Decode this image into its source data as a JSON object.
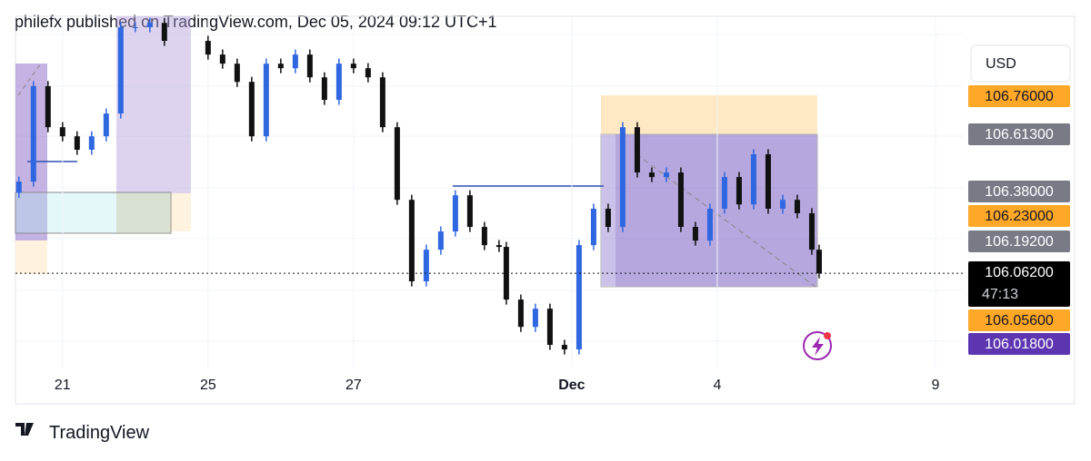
{
  "header": {
    "title": "philefx published on TradingView.com, Dec 05, 2024 09:12 UTC+1"
  },
  "footer": {
    "brand": "TradingView"
  },
  "currency": "USD",
  "countdown": "47:13",
  "chart_data": {
    "type": "candlestick",
    "x": [
      -0.6,
      -0.4,
      -0.2,
      0,
      0.2,
      0.4,
      0.6,
      0.8,
      1,
      1.2,
      1.4,
      2,
      2.2,
      2.4,
      2.6,
      2.8,
      3,
      3.2,
      3.4,
      3.6,
      3.8,
      4,
      4.2,
      4.4,
      4.6,
      4.8,
      5,
      5.2,
      5.4,
      5.6,
      5.8,
      6,
      6.1,
      6.3,
      6.5,
      6.7,
      6.9,
      7.1,
      7.3,
      7.5,
      7.7,
      7.9,
      8.1,
      8.3,
      8.5,
      8.7,
      8.9,
      9.1,
      9.3,
      9.5,
      9.7,
      9.9,
      10.1,
      10.3,
      10.4
    ],
    "open": [
      106.38,
      106.424,
      106.801,
      106.639,
      106.603,
      106.55,
      106.603,
      106.693,
      107.034,
      107.034,
      107.051,
      106.98,
      106.926,
      106.89,
      106.818,
      106.603,
      106.89,
      106.872,
      106.926,
      106.836,
      106.747,
      106.89,
      106.872,
      106.836,
      106.639,
      106.352,
      106.03,
      106.155,
      106.227,
      106.37,
      106.245,
      106.173,
      106.166,
      105.958,
      105.85,
      105.922,
      105.779,
      105.761,
      106.173,
      106.317,
      106.245,
      106.639,
      106.46,
      106.442,
      106.46,
      106.245,
      106.191,
      106.317,
      106.442,
      106.334,
      106.532,
      106.317,
      106.352,
      106.299,
      106.155
    ],
    "high": [
      106.444,
      106.821,
      106.821,
      106.659,
      106.623,
      106.623,
      106.713,
      107.054,
      107.054,
      107.071,
      107.071,
      107.0,
      106.946,
      106.91,
      106.838,
      106.91,
      106.91,
      106.946,
      106.946,
      106.856,
      106.91,
      106.91,
      106.892,
      106.856,
      106.659,
      106.372,
      106.175,
      106.247,
      106.39,
      106.39,
      106.265,
      106.193,
      106.186,
      105.978,
      105.942,
      105.942,
      105.799,
      106.193,
      106.337,
      106.337,
      106.659,
      106.659,
      106.48,
      106.48,
      106.48,
      106.265,
      106.337,
      106.462,
      106.462,
      106.552,
      106.552,
      106.372,
      106.372,
      106.319,
      106.175
    ],
    "low": [
      106.36,
      106.404,
      106.619,
      106.583,
      106.53,
      106.53,
      106.583,
      106.673,
      107.014,
      107.014,
      106.96,
      106.906,
      106.87,
      106.798,
      106.583,
      106.583,
      106.852,
      106.852,
      106.816,
      106.727,
      106.727,
      106.852,
      106.816,
      106.619,
      106.332,
      106.01,
      106.01,
      106.135,
      106.207,
      106.225,
      106.153,
      106.146,
      105.938,
      105.83,
      105.83,
      105.759,
      105.741,
      105.741,
      106.153,
      106.225,
      106.225,
      106.44,
      106.422,
      106.422,
      106.225,
      106.171,
      106.171,
      106.297,
      106.314,
      106.314,
      106.297,
      106.297,
      106.279,
      106.135,
      106.042
    ],
    "close": [
      106.424,
      106.801,
      106.639,
      106.603,
      106.55,
      106.603,
      106.693,
      107.034,
      107.034,
      107.051,
      106.98,
      106.926,
      106.89,
      106.818,
      106.603,
      106.89,
      106.872,
      106.926,
      106.836,
      106.747,
      106.89,
      106.872,
      106.836,
      106.639,
      106.352,
      106.03,
      106.155,
      106.227,
      106.37,
      106.245,
      106.173,
      106.166,
      105.958,
      105.85,
      105.922,
      105.779,
      105.761,
      106.173,
      106.317,
      106.245,
      106.639,
      106.46,
      106.442,
      106.46,
      106.245,
      106.191,
      106.317,
      106.442,
      106.334,
      106.532,
      106.317,
      106.352,
      106.299,
      106.155,
      106.062
    ],
    "up_color": "#2f67e0",
    "down_color": "#111111",
    "xlim": [
      -0.61,
      13.9
    ],
    "xticks": [
      {
        "value": 0,
        "label": "21"
      },
      {
        "value": 2,
        "label": "25"
      },
      {
        "value": 4,
        "label": "27"
      },
      {
        "value": 7,
        "label": "Dec"
      },
      {
        "value": 9,
        "label": "4"
      },
      {
        "value": 12,
        "label": "9"
      }
    ],
    "ylim": [
      105.546,
      107.077
    ],
    "grid": true,
    "current_price": 106.062,
    "price_labels": [
      {
        "value": 106.76,
        "label": "106.76000",
        "color": "#ffa726"
      },
      {
        "value": 106.613,
        "label": "106.61300",
        "color": "#787b86"
      },
      {
        "value": 106.38,
        "label": "106.38000",
        "color": "#787b86"
      },
      {
        "value": 106.23,
        "label": "106.23000",
        "color": "#ffa726"
      },
      {
        "value": 106.192,
        "label": "106.19200",
        "color": "#787b86"
      },
      {
        "value": 106.062,
        "label": "106.06200",
        "color": "#000000"
      },
      {
        "value": 106.056,
        "label": "106.05600",
        "color": "#ffa726"
      },
      {
        "value": 106.018,
        "label": "106.01800",
        "color": "#5e35b1"
      }
    ]
  }
}
